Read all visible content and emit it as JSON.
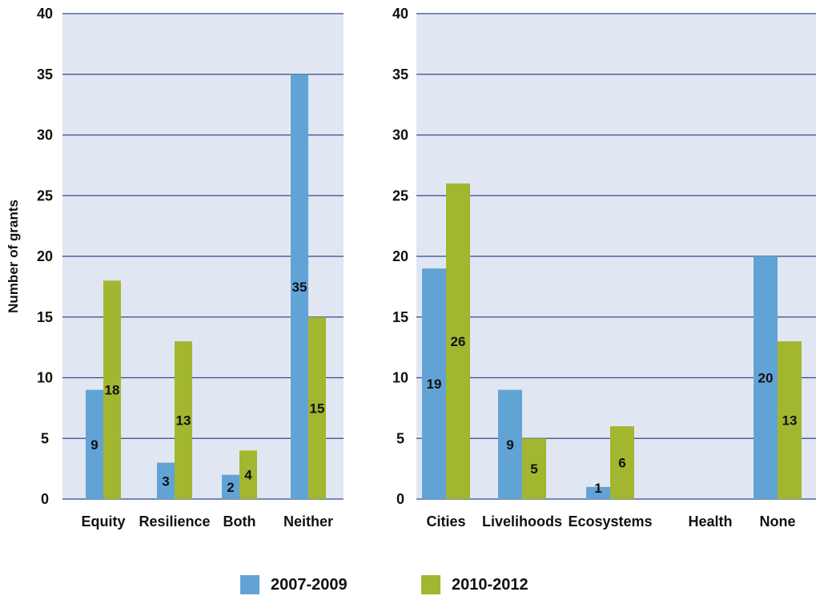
{
  "chart_data": [
    {
      "type": "bar",
      "ylabel": "Number of grants",
      "ylim": [
        0,
        40
      ],
      "yticks": [
        "0",
        "5",
        "10",
        "15",
        "20",
        "25",
        "30",
        "35",
        "40"
      ],
      "grid": true,
      "categories": [
        "Equity",
        "Resilience",
        "Both",
        "Neither"
      ],
      "series": [
        {
          "name": "2007-2009",
          "color": "#62a3d6",
          "values": [
            9,
            3,
            2,
            35
          ],
          "labels": [
            "9",
            "3",
            "2",
            "35"
          ]
        },
        {
          "name": "2010-2012",
          "color": "#a3b630",
          "values": [
            18,
            13,
            4,
            15
          ],
          "labels": [
            "18",
            "13",
            "4",
            "15"
          ]
        }
      ]
    },
    {
      "type": "bar",
      "ylabel": "",
      "ylim": [
        0,
        40
      ],
      "yticks": [
        "0",
        "5",
        "10",
        "15",
        "20",
        "25",
        "30",
        "35",
        "40"
      ],
      "grid": true,
      "categories": [
        "Cities",
        "Livelihoods",
        "Ecosystems",
        "Health",
        "None"
      ],
      "series": [
        {
          "name": "2007-2009",
          "color": "#62a3d6",
          "values": [
            19,
            9,
            1,
            0,
            20
          ],
          "labels": [
            "19",
            "9",
            "1",
            "",
            "20"
          ]
        },
        {
          "name": "2010-2012",
          "color": "#a3b630",
          "values": [
            26,
            5,
            6,
            0,
            13
          ],
          "labels": [
            "26",
            "5",
            "6",
            "",
            "13"
          ]
        }
      ]
    }
  ],
  "legend": {
    "placement": "bottom-center",
    "items": [
      {
        "label": "2007-2009",
        "color": "#62a3d6"
      },
      {
        "label": "2010-2012",
        "color": "#a3b630"
      }
    ]
  },
  "style": {
    "plot_background": "#e1e6f3",
    "grid_color": "#2f4d8a"
  }
}
